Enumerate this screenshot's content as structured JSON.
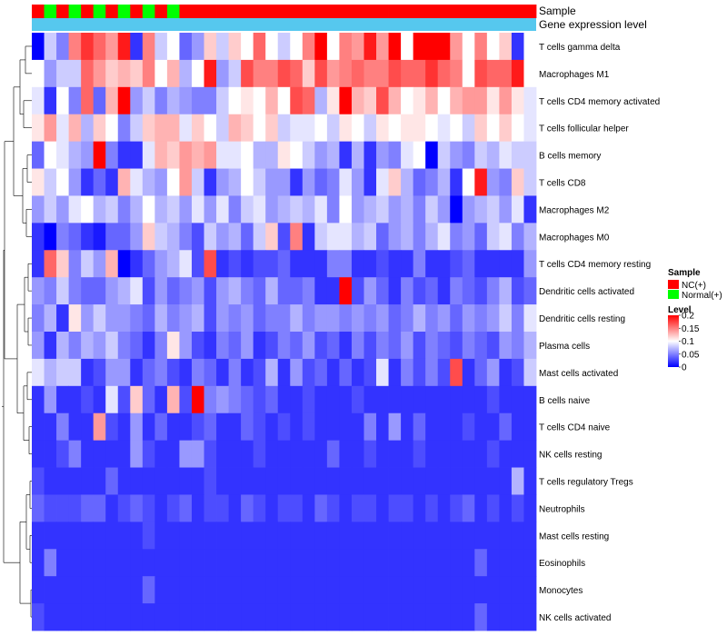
{
  "chart_data": {
    "type": "heatmap",
    "title": "",
    "annotation_bars": [
      {
        "name": "Sample",
        "label": "Sample"
      },
      {
        "name": "Gene expression level",
        "label": "Gene expression level",
        "color": "#56c8ee"
      }
    ],
    "sample_groups": [
      "NC",
      "Normal",
      "NC",
      "Normal",
      "NC",
      "Normal",
      "NC",
      "Normal",
      "NC",
      "Normal",
      "NC",
      "Normal",
      "NC",
      "NC",
      "NC",
      "NC",
      "NC",
      "NC",
      "NC",
      "NC",
      "NC",
      "NC",
      "NC",
      "NC",
      "NC",
      "NC",
      "NC",
      "NC",
      "NC",
      "NC",
      "NC",
      "NC",
      "NC",
      "NC",
      "NC",
      "NC",
      "NC",
      "NC",
      "NC",
      "NC",
      "NC"
    ],
    "rows": [
      "T cells gamma delta",
      "Macrophages M1",
      "T cells CD4 memory activated",
      "T cells follicular helper",
      "B cells memory",
      "T cells CD8",
      "Macrophages M2",
      "Macrophages M0",
      "T cells CD4 memory resting",
      "Dendritic cells activated",
      "Dendritic cells resting",
      "Plasma cells",
      "Mast cells activated",
      "B cells naive",
      "T cells CD4 naive",
      "NK cells resting",
      "T cells regulatory  Tregs",
      "Neutrophils",
      "Mast cells resting",
      "Eosinophils",
      "Monocytes",
      "NK cells activated"
    ],
    "values": [
      [
        0.0,
        0.08,
        0.05,
        0.15,
        0.18,
        0.16,
        0.14,
        0.19,
        0.02,
        0.15,
        0.08,
        0.1,
        0.04,
        0.06,
        0.12,
        0.08,
        0.12,
        0.1,
        0.16,
        0.1,
        0.08,
        0.1,
        0.15,
        0.2,
        0.1,
        0.15,
        0.14,
        0.19,
        0.14,
        0.2,
        0.1,
        0.2,
        0.2,
        0.2,
        0.14,
        0.1,
        0.15,
        0.1,
        0.12,
        0.02,
        0.1
      ],
      [
        0.1,
        0.06,
        0.08,
        0.08,
        0.16,
        0.14,
        0.12,
        0.13,
        0.12,
        0.15,
        0.1,
        0.13,
        0.07,
        0.1,
        0.19,
        0.06,
        0.08,
        0.17,
        0.15,
        0.15,
        0.17,
        0.16,
        0.12,
        0.17,
        0.14,
        0.15,
        0.16,
        0.15,
        0.15,
        0.17,
        0.16,
        0.16,
        0.18,
        0.16,
        0.15,
        0.1,
        0.17,
        0.16,
        0.16,
        0.19,
        0.1
      ],
      [
        0.09,
        0.02,
        0.1,
        0.05,
        0.16,
        0.04,
        0.13,
        0.2,
        0.06,
        0.08,
        0.05,
        0.07,
        0.06,
        0.05,
        0.05,
        0.08,
        0.1,
        0.11,
        0.1,
        0.13,
        0.1,
        0.17,
        0.16,
        0.07,
        0.11,
        0.2,
        0.13,
        0.12,
        0.17,
        0.13,
        0.1,
        0.11,
        0.13,
        0.1,
        0.13,
        0.14,
        0.14,
        0.11,
        0.14,
        0.11,
        0.09
      ],
      [
        0.11,
        0.14,
        0.09,
        0.13,
        0.07,
        0.12,
        0.1,
        0.05,
        0.08,
        0.12,
        0.13,
        0.13,
        0.09,
        0.12,
        0.1,
        0.08,
        0.13,
        0.12,
        0.1,
        0.12,
        0.08,
        0.09,
        0.09,
        0.1,
        0.08,
        0.11,
        0.1,
        0.08,
        0.11,
        0.1,
        0.11,
        0.11,
        0.1,
        0.09,
        0.1,
        0.08,
        0.12,
        0.1,
        0.12,
        0.1,
        0.09
      ],
      [
        0.04,
        0.1,
        0.09,
        0.07,
        0.06,
        0.2,
        0.05,
        0.02,
        0.02,
        0.09,
        0.13,
        0.12,
        0.14,
        0.13,
        0.14,
        0.09,
        0.09,
        0.1,
        0.07,
        0.07,
        0.11,
        0.1,
        0.08,
        0.06,
        0.07,
        0.02,
        0.07,
        0.02,
        0.06,
        0.05,
        0.09,
        0.1,
        0.0,
        0.08,
        0.06,
        0.05,
        0.08,
        0.07,
        0.09,
        0.08,
        0.08
      ],
      [
        0.11,
        0.08,
        0.1,
        0.06,
        0.02,
        0.04,
        0.02,
        0.13,
        0.09,
        0.07,
        0.06,
        0.1,
        0.14,
        0.08,
        0.02,
        0.06,
        0.07,
        0.1,
        0.08,
        0.06,
        0.06,
        0.02,
        0.06,
        0.04,
        0.05,
        0.09,
        0.06,
        0.02,
        0.09,
        0.12,
        0.07,
        0.04,
        0.05,
        0.07,
        0.02,
        0.1,
        0.19,
        0.06,
        0.05,
        0.12,
        0.08
      ],
      [
        0.06,
        0.08,
        0.06,
        0.09,
        0.1,
        0.07,
        0.08,
        0.05,
        0.07,
        0.1,
        0.07,
        0.08,
        0.06,
        0.09,
        0.06,
        0.09,
        0.05,
        0.08,
        0.09,
        0.06,
        0.07,
        0.08,
        0.07,
        0.09,
        0.05,
        0.1,
        0.06,
        0.07,
        0.08,
        0.06,
        0.07,
        0.05,
        0.08,
        0.06,
        0.0,
        0.06,
        0.07,
        0.08,
        0.06,
        0.09,
        0.02
      ],
      [
        0.02,
        0.0,
        0.05,
        0.04,
        0.02,
        0.01,
        0.04,
        0.04,
        0.06,
        0.12,
        0.08,
        0.07,
        0.05,
        0.03,
        0.08,
        0.06,
        0.07,
        0.04,
        0.08,
        0.12,
        0.03,
        0.15,
        0.02,
        0.08,
        0.09,
        0.09,
        0.07,
        0.08,
        0.04,
        0.06,
        0.07,
        0.05,
        0.07,
        0.09,
        0.05,
        0.06,
        0.04,
        0.08,
        0.09,
        0.05,
        0.07
      ],
      [
        0.02,
        0.16,
        0.12,
        0.05,
        0.08,
        0.06,
        0.13,
        0.0,
        0.02,
        0.04,
        0.06,
        0.07,
        0.09,
        0.03,
        0.17,
        0.02,
        0.03,
        0.02,
        0.03,
        0.03,
        0.04,
        0.02,
        0.02,
        0.02,
        0.05,
        0.05,
        0.02,
        0.02,
        0.03,
        0.02,
        0.02,
        0.05,
        0.02,
        0.02,
        0.03,
        0.04,
        0.02,
        0.02,
        0.02,
        0.02,
        0.06
      ],
      [
        0.06,
        0.05,
        0.08,
        0.05,
        0.04,
        0.04,
        0.06,
        0.07,
        0.09,
        0.03,
        0.06,
        0.04,
        0.05,
        0.06,
        0.03,
        0.06,
        0.07,
        0.05,
        0.04,
        0.07,
        0.04,
        0.04,
        0.05,
        0.02,
        0.02,
        0.2,
        0.03,
        0.06,
        0.04,
        0.02,
        0.05,
        0.03,
        0.04,
        0.02,
        0.05,
        0.04,
        0.03,
        0.05,
        0.07,
        0.03,
        0.04
      ],
      [
        0.05,
        0.07,
        0.02,
        0.11,
        0.06,
        0.08,
        0.06,
        0.06,
        0.05,
        0.04,
        0.07,
        0.05,
        0.06,
        0.07,
        0.03,
        0.06,
        0.05,
        0.06,
        0.04,
        0.05,
        0.05,
        0.07,
        0.05,
        0.06,
        0.06,
        0.05,
        0.06,
        0.05,
        0.06,
        0.04,
        0.05,
        0.07,
        0.05,
        0.06,
        0.04,
        0.06,
        0.05,
        0.06,
        0.08,
        0.05,
        0.09
      ],
      [
        0.06,
        0.02,
        0.07,
        0.05,
        0.07,
        0.06,
        0.08,
        0.05,
        0.04,
        0.02,
        0.05,
        0.11,
        0.06,
        0.03,
        0.02,
        0.05,
        0.04,
        0.06,
        0.02,
        0.03,
        0.05,
        0.04,
        0.06,
        0.03,
        0.04,
        0.02,
        0.05,
        0.03,
        0.05,
        0.04,
        0.06,
        0.03,
        0.05,
        0.04,
        0.03,
        0.05,
        0.04,
        0.03,
        0.06,
        0.05,
        0.07
      ],
      [
        0.09,
        0.07,
        0.08,
        0.08,
        0.02,
        0.03,
        0.06,
        0.06,
        0.02,
        0.04,
        0.05,
        0.03,
        0.02,
        0.05,
        0.04,
        0.02,
        0.05,
        0.02,
        0.03,
        0.07,
        0.02,
        0.06,
        0.03,
        0.04,
        0.02,
        0.04,
        0.02,
        0.03,
        0.09,
        0.02,
        0.05,
        0.03,
        0.05,
        0.03,
        0.17,
        0.02,
        0.04,
        0.06,
        0.02,
        0.03,
        0.08
      ],
      [
        0.02,
        0.06,
        0.02,
        0.02,
        0.03,
        0.02,
        0.09,
        0.03,
        0.12,
        0.04,
        0.02,
        0.13,
        0.03,
        0.2,
        0.05,
        0.06,
        0.05,
        0.04,
        0.03,
        0.04,
        0.02,
        0.02,
        0.03,
        0.02,
        0.02,
        0.02,
        0.03,
        0.02,
        0.02,
        0.02,
        0.02,
        0.02,
        0.02,
        0.02,
        0.02,
        0.02,
        0.02,
        0.03,
        0.02,
        0.02,
        0.02
      ],
      [
        0.02,
        0.02,
        0.05,
        0.02,
        0.02,
        0.14,
        0.03,
        0.02,
        0.06,
        0.02,
        0.04,
        0.02,
        0.02,
        0.03,
        0.04,
        0.02,
        0.02,
        0.04,
        0.03,
        0.02,
        0.03,
        0.02,
        0.03,
        0.02,
        0.02,
        0.02,
        0.02,
        0.05,
        0.02,
        0.06,
        0.02,
        0.04,
        0.02,
        0.02,
        0.02,
        0.03,
        0.02,
        0.02,
        0.04,
        0.02,
        0.02
      ],
      [
        0.02,
        0.02,
        0.03,
        0.05,
        0.02,
        0.02,
        0.02,
        0.02,
        0.06,
        0.03,
        0.02,
        0.02,
        0.06,
        0.06,
        0.03,
        0.02,
        0.02,
        0.02,
        0.03,
        0.02,
        0.02,
        0.02,
        0.02,
        0.02,
        0.04,
        0.02,
        0.02,
        0.03,
        0.02,
        0.02,
        0.02,
        0.03,
        0.02,
        0.02,
        0.02,
        0.02,
        0.02,
        0.03,
        0.02,
        0.02,
        0.02
      ],
      [
        0.03,
        0.02,
        0.02,
        0.02,
        0.02,
        0.02,
        0.04,
        0.02,
        0.02,
        0.02,
        0.02,
        0.02,
        0.02,
        0.02,
        0.03,
        0.02,
        0.02,
        0.02,
        0.02,
        0.02,
        0.02,
        0.02,
        0.02,
        0.02,
        0.02,
        0.02,
        0.02,
        0.02,
        0.02,
        0.02,
        0.02,
        0.02,
        0.02,
        0.02,
        0.02,
        0.02,
        0.02,
        0.02,
        0.02,
        0.07,
        0.02
      ],
      [
        0.04,
        0.03,
        0.03,
        0.03,
        0.04,
        0.04,
        0.02,
        0.03,
        0.04,
        0.03,
        0.02,
        0.03,
        0.04,
        0.02,
        0.03,
        0.03,
        0.02,
        0.04,
        0.03,
        0.02,
        0.03,
        0.03,
        0.02,
        0.04,
        0.03,
        0.02,
        0.03,
        0.03,
        0.02,
        0.03,
        0.03,
        0.02,
        0.03,
        0.02,
        0.03,
        0.04,
        0.02,
        0.03,
        0.02,
        0.03,
        0.02
      ],
      [
        0.02,
        0.02,
        0.02,
        0.02,
        0.02,
        0.02,
        0.02,
        0.02,
        0.02,
        0.03,
        0.02,
        0.02,
        0.02,
        0.02,
        0.02,
        0.02,
        0.02,
        0.02,
        0.02,
        0.02,
        0.02,
        0.02,
        0.02,
        0.02,
        0.02,
        0.02,
        0.02,
        0.02,
        0.02,
        0.02,
        0.02,
        0.02,
        0.02,
        0.02,
        0.02,
        0.02,
        0.02,
        0.02,
        0.02,
        0.02,
        0.02
      ],
      [
        0.02,
        0.05,
        0.02,
        0.02,
        0.02,
        0.02,
        0.02,
        0.02,
        0.02,
        0.02,
        0.02,
        0.02,
        0.02,
        0.02,
        0.02,
        0.02,
        0.02,
        0.02,
        0.02,
        0.02,
        0.02,
        0.02,
        0.02,
        0.02,
        0.02,
        0.02,
        0.02,
        0.02,
        0.02,
        0.02,
        0.02,
        0.02,
        0.02,
        0.02,
        0.02,
        0.02,
        0.04,
        0.02,
        0.02,
        0.02,
        0.02
      ],
      [
        0.02,
        0.02,
        0.02,
        0.02,
        0.02,
        0.02,
        0.02,
        0.02,
        0.02,
        0.04,
        0.02,
        0.02,
        0.02,
        0.02,
        0.02,
        0.02,
        0.02,
        0.02,
        0.02,
        0.02,
        0.02,
        0.02,
        0.02,
        0.02,
        0.02,
        0.02,
        0.02,
        0.02,
        0.02,
        0.02,
        0.02,
        0.02,
        0.02,
        0.02,
        0.02,
        0.02,
        0.02,
        0.02,
        0.02,
        0.02,
        0.02
      ],
      [
        0.03,
        0.02,
        0.02,
        0.02,
        0.02,
        0.02,
        0.02,
        0.02,
        0.02,
        0.02,
        0.02,
        0.02,
        0.02,
        0.02,
        0.02,
        0.02,
        0.02,
        0.02,
        0.02,
        0.02,
        0.02,
        0.02,
        0.02,
        0.02,
        0.02,
        0.02,
        0.02,
        0.02,
        0.02,
        0.02,
        0.02,
        0.02,
        0.02,
        0.02,
        0.02,
        0.02,
        0.04,
        0.02,
        0.02,
        0.02,
        0.02
      ]
    ],
    "legend": {
      "sample_title": "Sample",
      "sample_entries": [
        {
          "key": "NC",
          "label": "NC(+)",
          "color": "#ff0000"
        },
        {
          "key": "Normal",
          "label": "Normal(+)",
          "color": "#00ff00"
        }
      ],
      "level_title": "Level",
      "level_ticks": [
        {
          "label": "0.2",
          "value": 0.2
        },
        {
          "label": "0.15",
          "value": 0.15
        },
        {
          "label": "0.1",
          "value": 0.1
        },
        {
          "label": "0.05",
          "value": 0.05
        },
        {
          "label": "0",
          "value": 0
        }
      ]
    },
    "color_scale": {
      "min": 0,
      "mid": 0.1,
      "max": 0.2,
      "low": "#0000ff",
      "midColor": "#ffffff",
      "high": "#ff0000"
    }
  }
}
